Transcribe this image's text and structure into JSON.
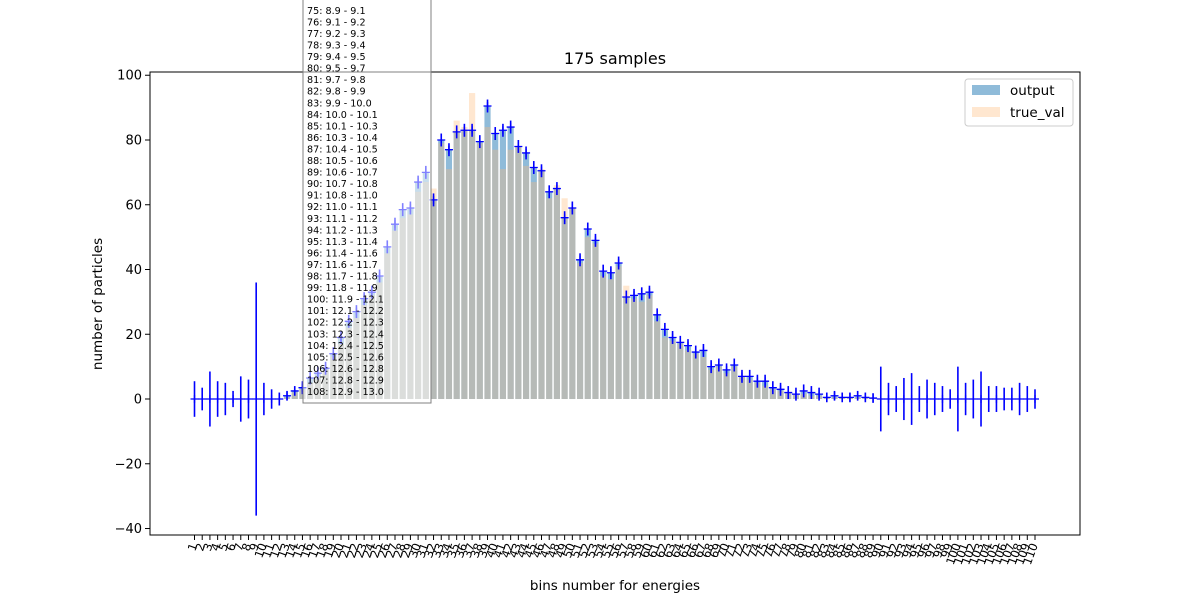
{
  "chart_data": {
    "type": "bar",
    "title": "175 samples",
    "xlabel": "bins number for energies",
    "ylabel": "number of particles",
    "ylim": [
      -42,
      101
    ],
    "yticks": [
      -40,
      -20,
      0,
      20,
      40,
      60,
      80,
      100
    ],
    "categories": [
      "1",
      "2",
      "3",
      "4",
      "5",
      "6",
      "7",
      "8",
      "9",
      "10",
      "11",
      "12",
      "13",
      "14",
      "15",
      "16",
      "17",
      "18",
      "19",
      "20",
      "21",
      "22",
      "23",
      "24",
      "25",
      "26",
      "27",
      "28",
      "29",
      "30",
      "31",
      "32",
      "33",
      "34",
      "35",
      "36",
      "37",
      "38",
      "39",
      "40",
      "41",
      "42",
      "43",
      "44",
      "45",
      "46",
      "47",
      "48",
      "49",
      "50",
      "51",
      "52",
      "53",
      "54",
      "55",
      "56",
      "57",
      "58",
      "59",
      "60",
      "61",
      "62",
      "63",
      "64",
      "65",
      "66",
      "67",
      "68",
      "69",
      "70",
      "71",
      "72",
      "73",
      "74",
      "75",
      "76",
      "77",
      "78",
      "79",
      "80",
      "81",
      "82",
      "83",
      "84",
      "85",
      "86",
      "87",
      "88",
      "89",
      "90",
      "91",
      "92",
      "93",
      "94",
      "95",
      "96",
      "97",
      "98",
      "99",
      "100",
      "101",
      "102",
      "103",
      "104",
      "105",
      "106",
      "107",
      "108",
      "109",
      "110"
    ],
    "series": [
      {
        "name": "output",
        "color": "#1f77b4",
        "values": [
          0,
          0,
          0,
          0,
          0,
          0,
          0,
          0,
          0,
          0,
          0,
          0,
          1,
          2.5,
          3.5,
          6.5,
          8,
          9.5,
          14,
          19,
          24,
          27,
          31,
          33,
          38,
          47,
          54,
          58.5,
          59,
          67,
          70,
          61.5,
          80,
          77,
          82.5,
          83,
          83,
          79.5,
          90.5,
          82,
          83,
          84,
          78,
          76,
          71.5,
          70.5,
          64,
          65,
          56,
          59,
          43,
          52.5,
          49,
          39.5,
          39,
          42,
          31.5,
          32,
          32.5,
          33,
          26,
          21.5,
          19,
          17.5,
          16.5,
          14.5,
          15,
          10,
          10.5,
          9,
          10.5,
          7,
          7,
          5.5,
          5.5,
          3.5,
          3,
          2,
          1.5,
          2.5,
          2,
          1.5,
          0.5,
          1,
          0.5,
          0.5,
          1,
          0.5,
          0.3,
          0,
          0,
          0,
          0,
          0,
          0,
          0,
          0,
          0,
          0,
          0,
          0,
          0,
          0,
          0,
          0,
          0,
          0,
          0,
          0,
          0
        ]
      },
      {
        "name": "true_val",
        "color": "#ffbb78",
        "values": [
          0,
          0,
          0,
          0,
          0,
          0,
          0,
          0,
          0,
          0,
          0,
          0,
          0.5,
          2,
          3,
          5,
          7,
          9,
          13,
          17,
          22,
          25,
          29,
          32,
          36,
          45,
          52,
          56,
          57,
          64,
          67,
          65,
          79,
          71,
          86,
          84,
          94.5,
          79,
          84,
          77,
          71,
          77,
          78,
          72,
          67,
          71,
          62,
          66,
          62,
          59,
          42,
          50,
          48,
          38,
          37,
          41,
          35,
          31,
          30,
          32,
          24,
          19,
          18,
          17,
          15,
          14,
          13,
          9,
          10,
          8,
          10,
          7,
          6,
          5,
          4,
          3,
          2.5,
          2,
          1.5,
          1.5,
          1,
          1,
          0.5,
          0.5,
          0.5,
          0.5,
          0.5,
          0.3,
          0.2,
          0,
          0,
          0,
          0,
          0,
          0,
          0,
          0,
          0,
          0,
          0,
          0,
          0,
          0,
          0,
          0,
          0,
          0,
          0,
          0,
          0
        ]
      }
    ],
    "errorbars": {
      "color": "#0000ff",
      "half_widths": [
        5.5,
        3.5,
        8.5,
        5.5,
        5,
        2.5,
        7,
        6,
        36,
        5,
        3,
        2,
        1.5,
        1.5,
        2,
        2,
        2,
        2,
        2,
        2,
        2,
        2,
        2,
        2,
        2,
        2,
        2,
        2,
        2,
        2,
        2,
        2,
        2,
        2,
        2,
        2,
        2,
        2,
        2,
        2,
        2,
        2,
        2,
        2,
        2,
        2,
        2,
        2,
        2,
        2,
        2,
        2,
        2,
        2,
        2,
        2,
        2,
        2,
        2,
        2,
        2,
        2,
        2,
        2,
        2,
        2,
        2,
        2,
        2,
        2,
        2,
        2,
        2,
        2,
        2,
        2,
        2,
        2,
        2,
        2,
        2,
        2,
        1.5,
        1.5,
        1.5,
        1.5,
        1.5,
        1.5,
        1.5,
        10,
        5,
        4,
        6.5,
        8,
        4,
        6,
        5,
        4,
        3,
        10,
        5,
        6,
        8.5,
        4,
        4,
        3.5,
        3.5,
        5,
        4,
        3
      ]
    },
    "legend": {
      "placement": "top-right",
      "entries": [
        {
          "label": "output",
          "color": "#1f77b4"
        },
        {
          "label": "true_val",
          "color": "#ffbb78"
        }
      ]
    },
    "annotation_lines": [
      "75: 8.9 - 9.1",
      "76: 9.1 - 9.2",
      "77: 9.2 - 9.3",
      "78: 9.3 - 9.4",
      "79: 9.4 - 9.5",
      "80: 9.5 - 9.7",
      "81: 9.7 - 9.8",
      "82: 9.8 - 9.9",
      "83: 9.9 - 10.0",
      "84: 10.0 - 10.1",
      "85: 10.1 - 10.3",
      "86: 10.3 - 10.4",
      "87: 10.4 - 10.5",
      "88: 10.5 - 10.6",
      "89: 10.6 - 10.7",
      "90: 10.7 - 10.8",
      "91: 10.8 - 11.0",
      "92: 11.0 - 11.1",
      "93: 11.1 - 11.2",
      "94: 11.2 - 11.3",
      "95: 11.3 - 11.4",
      "96: 11.4 - 11.6",
      "97: 11.6 - 11.7",
      "98: 11.7 - 11.8",
      "99: 11.8 - 11.9",
      "100: 11.9 - 12.1",
      "101: 12.1 - 12.2",
      "102: 12.2 - 12.3",
      "103: 12.3 - 12.4",
      "104: 12.4 - 12.5",
      "105: 12.5 - 12.6",
      "106: 12.6 - 12.8",
      "107: 12.8 - 12.9",
      "108: 12.9 - 13.0"
    ],
    "grid": false
  }
}
